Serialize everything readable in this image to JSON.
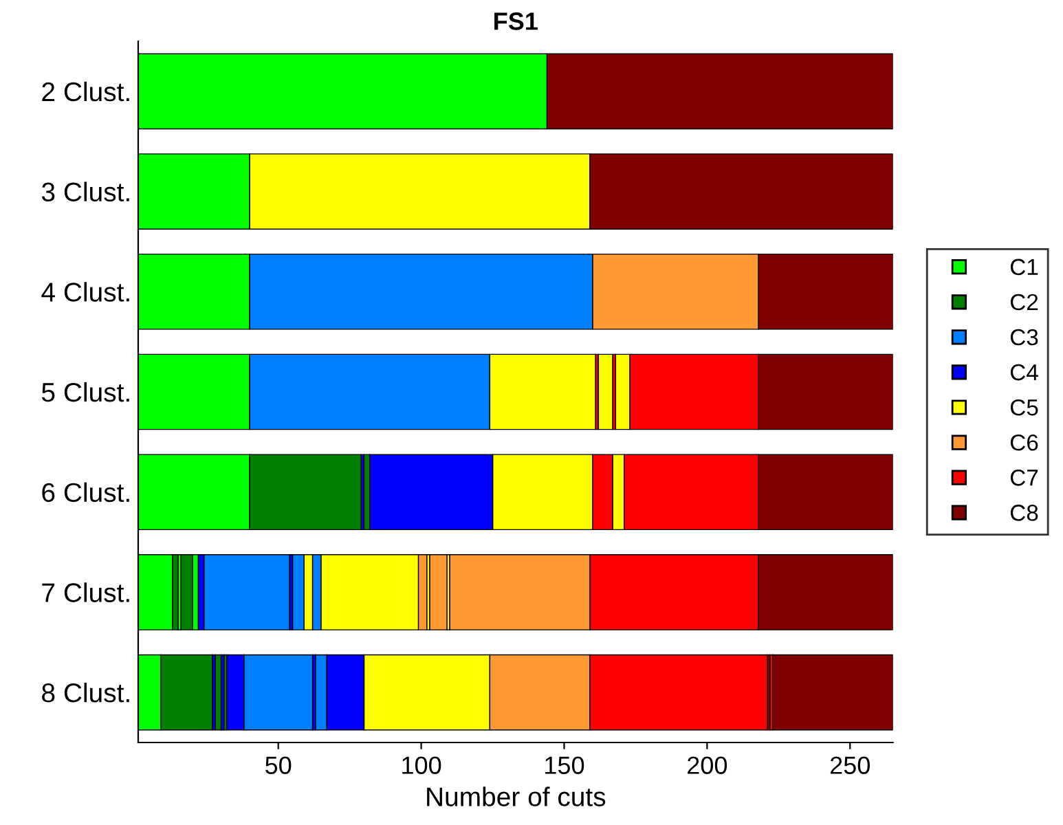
{
  "chart_data": {
    "type": "bar",
    "orientation": "horizontal",
    "title": "FS1",
    "xlabel": "Number of cuts",
    "categories": [
      "2 Clust.",
      "3 Clust.",
      "4 Clust.",
      "5 Clust.",
      "6 Clust.",
      "7 Clust.",
      "8 Clust."
    ],
    "xlim": [
      1,
      265
    ],
    "xticks": [
      50,
      100,
      150,
      200,
      250
    ],
    "grid": false,
    "legend": "right",
    "marker": "square",
    "series": [
      {
        "name": "C1",
        "color": "#00ff00",
        "values": [
          143,
          39,
          39,
          39,
          39,
          12,
          8
        ],
        "base": [
          1,
          1,
          1,
          1,
          1,
          1,
          1
        ]
      },
      {
        "name": "C2",
        "color": "#008000",
        "values": [
          null,
          null,
          null,
          null,
          39,
          2,
          18
        ],
        "base": [
          null,
          null,
          null,
          null,
          40,
          13,
          9
        ]
      },
      {
        "name": "C3",
        "color": "#0080ff",
        "values": [
          null,
          null,
          120,
          84,
          null,
          30,
          24
        ],
        "base": [
          null,
          null,
          40,
          40,
          null,
          24,
          38
        ]
      },
      {
        "name": "C4",
        "color": "#0000ff",
        "values": [
          null,
          null,
          null,
          null,
          1,
          2,
          1
        ],
        "base": [
          null,
          null,
          null,
          null,
          79,
          22,
          27
        ]
      },
      {
        "name": "C5",
        "color": "#ffff00",
        "values": [
          null,
          119,
          null,
          37,
          35,
          3,
          44
        ],
        "base": [
          null,
          40,
          null,
          124,
          125,
          59,
          80
        ]
      },
      {
        "name": "C6",
        "color": "#ff9933",
        "values": [
          null,
          null,
          58,
          null,
          null,
          3,
          35
        ],
        "base": [
          null,
          null,
          160,
          null,
          null,
          99,
          124
        ]
      },
      {
        "name": "C7",
        "color": "#ff0000",
        "values": [
          null,
          null,
          null,
          1,
          7,
          59,
          62
        ],
        "base": [
          null,
          null,
          null,
          161,
          160,
          159,
          159
        ]
      },
      {
        "name": "C8",
        "color": "#800000",
        "values": [
          121,
          106,
          47,
          47,
          47,
          47,
          1
        ],
        "base": [
          144,
          159,
          218,
          218,
          218,
          218,
          221
        ]
      },
      {
        "color": "#00ff00",
        "values": [
          null,
          null,
          null,
          null,
          null,
          1,
          null
        ],
        "base": [
          null,
          null,
          null,
          null,
          null,
          15,
          null
        ]
      },
      {
        "color": "#00ff00",
        "values": [
          null,
          null,
          null,
          null,
          null,
          2,
          null
        ],
        "base": [
          null,
          null,
          null,
          null,
          null,
          20,
          null
        ]
      },
      {
        "color": "#008000",
        "values": [
          null,
          null,
          null,
          null,
          2,
          4,
          2
        ],
        "base": [
          null,
          null,
          null,
          null,
          80,
          16,
          28
        ]
      },
      {
        "color": "#008000",
        "values": [
          null,
          null,
          null,
          null,
          null,
          null,
          1
        ],
        "base": [
          null,
          null,
          null,
          null,
          null,
          null,
          31
        ]
      },
      {
        "color": "#0080ff",
        "values": [
          null,
          null,
          null,
          null,
          null,
          4,
          4
        ],
        "base": [
          null,
          null,
          null,
          null,
          null,
          55,
          63
        ]
      },
      {
        "color": "#0080ff",
        "values": [
          null,
          null,
          null,
          null,
          null,
          3,
          null
        ],
        "base": [
          null,
          null,
          null,
          null,
          null,
          62,
          null
        ]
      },
      {
        "color": "#0000ff",
        "values": [
          null,
          null,
          null,
          null,
          43,
          1,
          1
        ],
        "base": [
          null,
          null,
          null,
          null,
          82,
          54,
          30
        ]
      },
      {
        "color": "#0000ff",
        "values": [
          null,
          null,
          null,
          null,
          null,
          null,
          6
        ],
        "base": [
          null,
          null,
          null,
          null,
          null,
          null,
          32
        ]
      },
      {
        "color": "#0000ff",
        "values": [
          null,
          null,
          null,
          null,
          null,
          null,
          1
        ],
        "base": [
          null,
          null,
          null,
          null,
          null,
          null,
          62
        ]
      },
      {
        "color": "#0000ff",
        "values": [
          null,
          null,
          null,
          null,
          null,
          null,
          13
        ],
        "base": [
          null,
          null,
          null,
          null,
          null,
          null,
          67
        ]
      },
      {
        "color": "#ffff00",
        "values": [
          null,
          null,
          null,
          5,
          4,
          34,
          null
        ],
        "base": [
          null,
          null,
          null,
          162,
          167,
          65,
          null
        ]
      },
      {
        "color": "#ffff00",
        "values": [
          null,
          null,
          null,
          5,
          null,
          1,
          null
        ],
        "base": [
          null,
          null,
          null,
          168,
          null,
          102,
          null
        ]
      },
      {
        "color": "#ffff00",
        "values": [
          null,
          null,
          null,
          null,
          null,
          1,
          null
        ],
        "base": [
          null,
          null,
          null,
          null,
          null,
          109,
          null
        ]
      },
      {
        "color": "#ff9933",
        "values": [
          null,
          null,
          null,
          null,
          null,
          6,
          null
        ],
        "base": [
          null,
          null,
          null,
          null,
          null,
          103,
          null
        ]
      },
      {
        "color": "#ff9933",
        "values": [
          null,
          null,
          null,
          null,
          null,
          49,
          null
        ],
        "base": [
          null,
          null,
          null,
          null,
          null,
          110,
          null
        ]
      },
      {
        "color": "#ff0000",
        "values": [
          null,
          null,
          null,
          1,
          47,
          null,
          1
        ],
        "base": [
          null,
          null,
          null,
          167,
          171,
          null,
          222
        ]
      },
      {
        "color": "#ff0000",
        "values": [
          null,
          null,
          null,
          45,
          null,
          null,
          null
        ],
        "base": [
          null,
          null,
          null,
          173,
          null,
          null,
          null
        ]
      },
      {
        "color": "#800000",
        "values": [
          null,
          null,
          null,
          null,
          null,
          null,
          42
        ],
        "base": [
          null,
          null,
          null,
          null,
          null,
          null,
          223
        ]
      }
    ]
  }
}
